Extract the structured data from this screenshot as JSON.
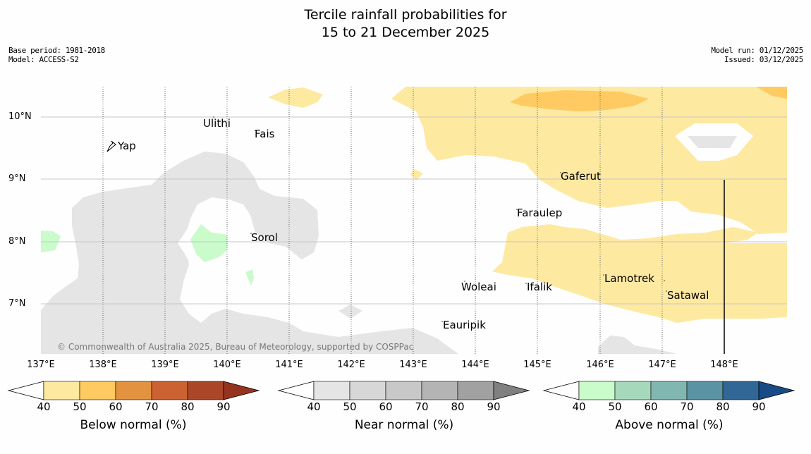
{
  "title": {
    "line1": "Tercile rainfall probabilities for",
    "line2": "15 to 21 December 2025"
  },
  "meta_left": {
    "base_period": "Base period: 1981-2018",
    "model": "Model: ACCESS-S2"
  },
  "meta_right": {
    "model_run": "Model run: 01/12/2025",
    "issued": "Issued: 03/12/2025"
  },
  "latitude_labels": [
    "10°N",
    "9°N",
    "8°N",
    "7°N"
  ],
  "longitude_labels": [
    "137°E",
    "138°E",
    "139°E",
    "140°E",
    "141°E",
    "142°E",
    "143°E",
    "144°E",
    "145°E",
    "146°E",
    "147°E",
    "148°E"
  ],
  "islands": [
    "Ulithi",
    "Fais",
    "Yap",
    "Gaferut",
    "Faraulep",
    "Sorol",
    "Lamotrek",
    "Woleai",
    "Ifalik",
    "Satawal",
    "Eauripik"
  ],
  "copyright": "© Commonwealth of Australia 2025, Bureau of Meteorology, supported by COSPPac",
  "colorbars": [
    {
      "label": "Below normal (%)",
      "ticks": [
        "40",
        "50",
        "60",
        "70",
        "80",
        "90"
      ],
      "colors": [
        "#fee9a1",
        "#feca61",
        "#e39340",
        "#cc6232",
        "#aa4728",
        "#94341f"
      ]
    },
    {
      "label": "Near normal (%)",
      "ticks": [
        "40",
        "50",
        "60",
        "70",
        "80",
        "90"
      ],
      "colors": [
        "#e5e5e5",
        "#d7d7d7",
        "#c8c8c8",
        "#b4b4b4",
        "#a1a1a1",
        "#808080"
      ]
    },
    {
      "label": "Above normal (%)",
      "ticks": [
        "40",
        "50",
        "60",
        "70",
        "80",
        "90"
      ],
      "colors": [
        "#c9fbcb",
        "#a6d9bc",
        "#81b7b1",
        "#5a93a3",
        "#306797",
        "#184b85"
      ]
    }
  ]
}
